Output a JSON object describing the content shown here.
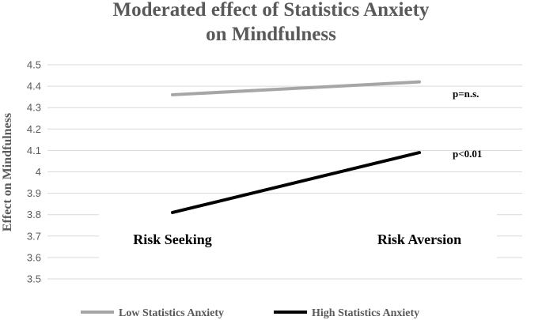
{
  "chart_data": {
    "type": "line",
    "title_line1": "Moderated effect of Statistics Anxiety",
    "title_line2": "on Mindfulness",
    "xlabel": "",
    "ylabel": "Effect on Mindfulness",
    "categories": [
      "Risk Seeking",
      "Risk Aversion"
    ],
    "ylim": [
      3.5,
      4.5
    ],
    "yticks": [
      "3.5",
      "3.6",
      "3.7",
      "3.8",
      "3.9",
      "4",
      "4.1",
      "4.2",
      "4.3",
      "4.4",
      "4.5"
    ],
    "grid": true,
    "legend_position": "bottom",
    "series": [
      {
        "name": "Low Statistics Anxiety",
        "values": [
          4.36,
          4.42
        ],
        "color": "#a6a6a6",
        "annotation": "p=n.s."
      },
      {
        "name": "High Statistics Anxiety",
        "values": [
          3.81,
          4.09
        ],
        "color": "#000000",
        "annotation": "p<0.01"
      }
    ]
  }
}
